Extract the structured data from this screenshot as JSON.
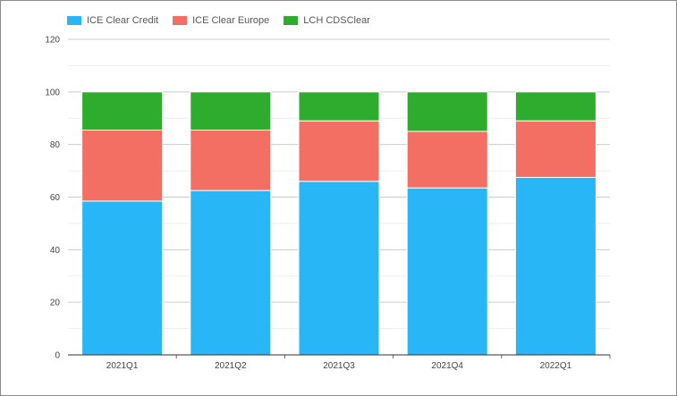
{
  "chart_data": {
    "type": "bar",
    "stacked": true,
    "categories": [
      "2021Q1",
      "2021Q2",
      "2021Q3",
      "2021Q4",
      "2022Q1"
    ],
    "series": [
      {
        "name": "ICE Clear Credit",
        "color": "#29b6f6",
        "values": [
          58.5,
          62.5,
          66.0,
          63.5,
          67.5
        ]
      },
      {
        "name": "ICE Clear Europe",
        "color": "#f36f63",
        "values": [
          27.0,
          23.0,
          23.0,
          21.5,
          21.5
        ]
      },
      {
        "name": "LCH CDSClear",
        "color": "#2eac2e",
        "values": [
          14.5,
          14.5,
          11.0,
          15.0,
          11.0
        ]
      }
    ],
    "y_ticks": [
      "0",
      "20",
      "40",
      "60",
      "80",
      "100",
      "120"
    ],
    "ylim": [
      0,
      120
    ],
    "grid": true,
    "legend_position": "top-left"
  }
}
